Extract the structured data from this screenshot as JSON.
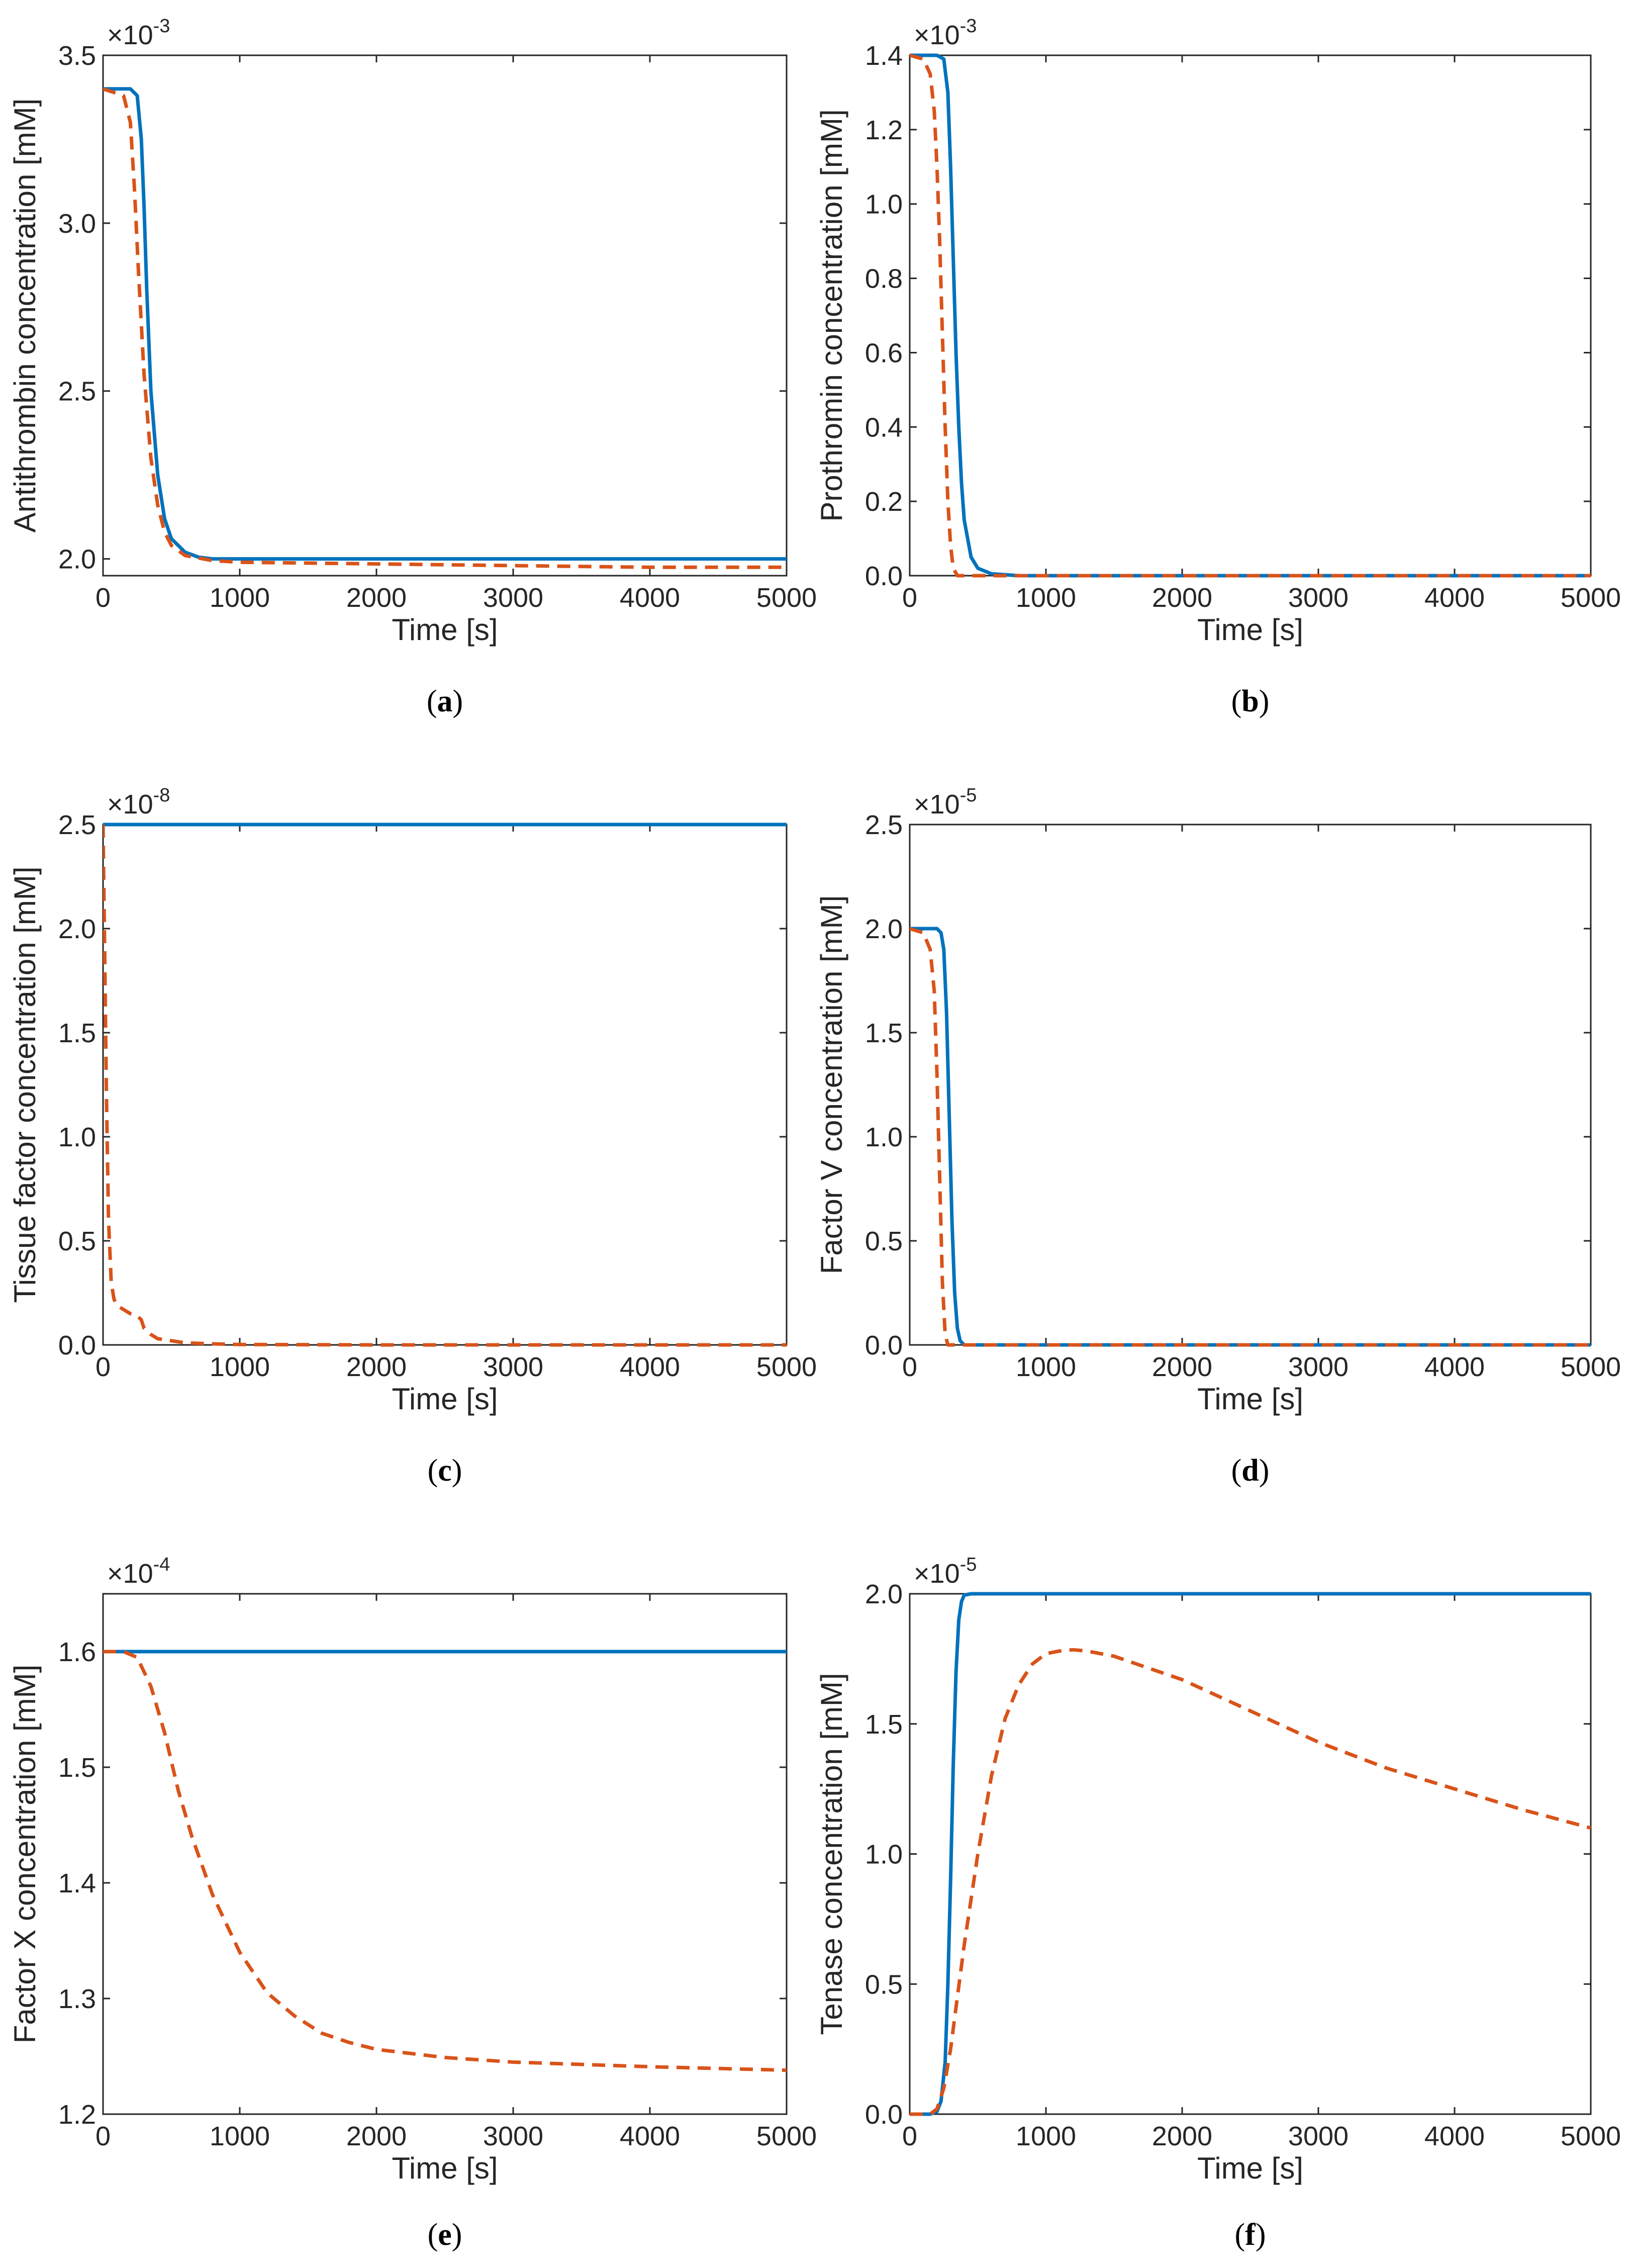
{
  "colors": {
    "series1": "#0072BD",
    "series2": "#D95319",
    "axis": "#262626"
  },
  "chart_data": [
    {
      "id": "a",
      "type": "line",
      "caption": "a",
      "xlabel": "Time [s]",
      "ylabel": "Antithrombin concentration [mM]",
      "xlim": [
        0,
        5000
      ],
      "ylim": [
        1.95,
        3.5
      ],
      "xticks": [
        0,
        1000,
        2000,
        3000,
        4000,
        5000
      ],
      "xtick_labels": [
        "0",
        "1000",
        "2000",
        "3000",
        "4000",
        "5000"
      ],
      "yticks": [
        2.0,
        2.5,
        3.0,
        3.5
      ],
      "ytick_labels": [
        "2.0",
        "2.5",
        "3.0",
        "3.5"
      ],
      "multiplier_base": "×10",
      "multiplier_exp": "-3",
      "series": [
        {
          "style": "solid",
          "x": [
            0,
            200,
            250,
            280,
            300,
            320,
            350,
            400,
            450,
            500,
            600,
            700,
            800,
            1000,
            2000,
            3000,
            4000,
            5000
          ],
          "y": [
            3.4,
            3.4,
            3.38,
            3.25,
            3.05,
            2.8,
            2.5,
            2.25,
            2.12,
            2.06,
            2.02,
            2.005,
            2.0,
            2.0,
            2.0,
            2.0,
            2.0,
            2.0
          ]
        },
        {
          "style": "dashed",
          "x": [
            0,
            150,
            200,
            230,
            260,
            300,
            350,
            400,
            450,
            500,
            600,
            800,
            1000,
            2000,
            3000,
            4000,
            5000
          ],
          "y": [
            3.4,
            3.38,
            3.3,
            3.1,
            2.85,
            2.55,
            2.3,
            2.16,
            2.08,
            2.04,
            2.01,
            1.995,
            1.99,
            1.985,
            1.98,
            1.975,
            1.975
          ]
        }
      ]
    },
    {
      "id": "b",
      "type": "line",
      "caption": "b",
      "xlabel": "Time [s]",
      "ylabel": "Prothromin concentration [mM]",
      "xlim": [
        0,
        5000
      ],
      "ylim": [
        0,
        1.4
      ],
      "xticks": [
        0,
        1000,
        2000,
        3000,
        4000,
        5000
      ],
      "xtick_labels": [
        "0",
        "1000",
        "2000",
        "3000",
        "4000",
        "5000"
      ],
      "yticks": [
        0,
        0.2,
        0.4,
        0.6,
        0.8,
        1.0,
        1.2,
        1.4
      ],
      "ytick_labels": [
        "0.0",
        "0.2",
        "0.4",
        "0.6",
        "0.8",
        "1.0",
        "1.2",
        "1.4"
      ],
      "multiplier_base": "×10",
      "multiplier_exp": "-3",
      "series": [
        {
          "style": "solid",
          "x": [
            0,
            200,
            250,
            280,
            300,
            320,
            340,
            360,
            380,
            400,
            450,
            500,
            600,
            800,
            5000
          ],
          "y": [
            1.4,
            1.4,
            1.39,
            1.3,
            1.1,
            0.85,
            0.6,
            0.4,
            0.25,
            0.15,
            0.05,
            0.02,
            0.005,
            0.0,
            0.0
          ]
        },
        {
          "style": "dashed",
          "x": [
            0,
            100,
            150,
            180,
            200,
            220,
            240,
            260,
            280,
            300,
            320,
            350,
            5000
          ],
          "y": [
            1.4,
            1.39,
            1.35,
            1.25,
            1.1,
            0.9,
            0.65,
            0.4,
            0.2,
            0.08,
            0.02,
            0.0,
            0.0
          ]
        }
      ]
    },
    {
      "id": "c",
      "type": "line",
      "caption": "c",
      "xlabel": "Time [s]",
      "ylabel": "Tissue factor concentration [mM]",
      "xlim": [
        0,
        5000
      ],
      "ylim": [
        0,
        2.5
      ],
      "xticks": [
        0,
        1000,
        2000,
        3000,
        4000,
        5000
      ],
      "xtick_labels": [
        "0",
        "1000",
        "2000",
        "3000",
        "4000",
        "5000"
      ],
      "yticks": [
        0,
        0.5,
        1.0,
        1.5,
        2.0,
        2.5
      ],
      "ytick_labels": [
        "0.0",
        "0.5",
        "1.0",
        "1.5",
        "2.0",
        "2.5"
      ],
      "multiplier_base": "×10",
      "multiplier_exp": "-8",
      "series": [
        {
          "style": "solid",
          "x": [
            0,
            5000
          ],
          "y": [
            2.5,
            2.5
          ]
        },
        {
          "style": "dashed",
          "x": [
            0,
            10,
            25,
            40,
            60,
            80,
            100,
            150,
            200,
            250,
            280,
            300,
            350,
            400,
            500,
            600,
            800,
            1000,
            2000,
            5000
          ],
          "y": [
            2.5,
            2.0,
            1.2,
            0.6,
            0.3,
            0.22,
            0.19,
            0.17,
            0.15,
            0.14,
            0.12,
            0.08,
            0.05,
            0.03,
            0.02,
            0.01,
            0.005,
            0.002,
            0.0,
            0.0
          ]
        }
      ]
    },
    {
      "id": "d",
      "type": "line",
      "caption": "d",
      "xlabel": "Time [s]",
      "ylabel": "Factor V concentration [mM]",
      "xlim": [
        0,
        5000
      ],
      "ylim": [
        0,
        2.5
      ],
      "xticks": [
        0,
        1000,
        2000,
        3000,
        4000,
        5000
      ],
      "xtick_labels": [
        "0",
        "1000",
        "2000",
        "3000",
        "4000",
        "5000"
      ],
      "yticks": [
        0,
        0.5,
        1.0,
        1.5,
        2.0,
        2.5
      ],
      "ytick_labels": [
        "0.0",
        "0.5",
        "1.0",
        "1.5",
        "2.0",
        "2.5"
      ],
      "multiplier_base": "×10",
      "multiplier_exp": "-5",
      "series": [
        {
          "style": "solid",
          "x": [
            0,
            200,
            230,
            250,
            270,
            290,
            310,
            330,
            350,
            370,
            400,
            450,
            5000
          ],
          "y": [
            2.0,
            2.0,
            1.98,
            1.9,
            1.6,
            1.1,
            0.6,
            0.25,
            0.08,
            0.02,
            0.0,
            0.0,
            0.0
          ]
        },
        {
          "style": "dashed",
          "x": [
            0,
            100,
            150,
            180,
            200,
            220,
            240,
            260,
            280,
            300,
            5000
          ],
          "y": [
            2.0,
            1.98,
            1.9,
            1.7,
            1.3,
            0.8,
            0.3,
            0.05,
            0.0,
            0.0,
            0.0
          ]
        }
      ]
    },
    {
      "id": "e",
      "type": "line",
      "caption": "e",
      "xlabel": "Time [s]",
      "ylabel": "Factor X concentration [mM]",
      "xlim": [
        0,
        5000
      ],
      "ylim": [
        1.2,
        1.65
      ],
      "xticks": [
        0,
        1000,
        2000,
        3000,
        4000,
        5000
      ],
      "xtick_labels": [
        "0",
        "1000",
        "2000",
        "3000",
        "4000",
        "5000"
      ],
      "yticks": [
        1.2,
        1.3,
        1.4,
        1.5,
        1.6
      ],
      "ytick_labels": [
        "1.2",
        "1.3",
        "1.4",
        "1.5",
        "1.6"
      ],
      "multiplier_base": "×10",
      "multiplier_exp": "-4",
      "series": [
        {
          "style": "solid",
          "x": [
            0,
            5000
          ],
          "y": [
            1.6,
            1.6
          ]
        },
        {
          "style": "dashed",
          "x": [
            0,
            150,
            250,
            350,
            450,
            550,
            650,
            800,
            1000,
            1200,
            1400,
            1600,
            1800,
            2000,
            2500,
            3000,
            4000,
            5000
          ],
          "y": [
            1.6,
            1.6,
            1.595,
            1.57,
            1.53,
            1.48,
            1.44,
            1.39,
            1.34,
            1.305,
            1.285,
            1.27,
            1.262,
            1.256,
            1.249,
            1.245,
            1.241,
            1.238
          ]
        }
      ]
    },
    {
      "id": "f",
      "type": "line",
      "caption": "f",
      "xlabel": "Time [s]",
      "ylabel": "Tenase concentration [mM]",
      "xlim": [
        0,
        5000
      ],
      "ylim": [
        0,
        2.0
      ],
      "xticks": [
        0,
        1000,
        2000,
        3000,
        4000,
        5000
      ],
      "xtick_labels": [
        "0",
        "1000",
        "2000",
        "3000",
        "4000",
        "5000"
      ],
      "yticks": [
        0,
        0.5,
        1.0,
        1.5,
        2.0
      ],
      "ytick_labels": [
        "0.0",
        "0.5",
        "1.0",
        "1.5",
        "2.0"
      ],
      "multiplier_base": "×10",
      "multiplier_exp": "-5",
      "series": [
        {
          "style": "solid",
          "x": [
            0,
            150,
            200,
            230,
            260,
            280,
            300,
            320,
            340,
            360,
            380,
            400,
            450,
            5000
          ],
          "y": [
            0,
            0,
            0.01,
            0.05,
            0.2,
            0.5,
            0.9,
            1.35,
            1.7,
            1.9,
            1.97,
            1.995,
            2.0,
            2.0
          ]
        },
        {
          "style": "dashed",
          "x": [
            0,
            150,
            200,
            250,
            300,
            350,
            400,
            500,
            600,
            700,
            800,
            900,
            1000,
            1100,
            1200,
            1300,
            1500,
            2000,
            2500,
            3000,
            3500,
            4000,
            4500,
            5000
          ],
          "y": [
            0,
            0,
            0.02,
            0.1,
            0.25,
            0.45,
            0.65,
            1.0,
            1.3,
            1.52,
            1.65,
            1.73,
            1.77,
            1.78,
            1.785,
            1.78,
            1.76,
            1.67,
            1.55,
            1.43,
            1.33,
            1.25,
            1.17,
            1.1
          ]
        }
      ]
    }
  ]
}
